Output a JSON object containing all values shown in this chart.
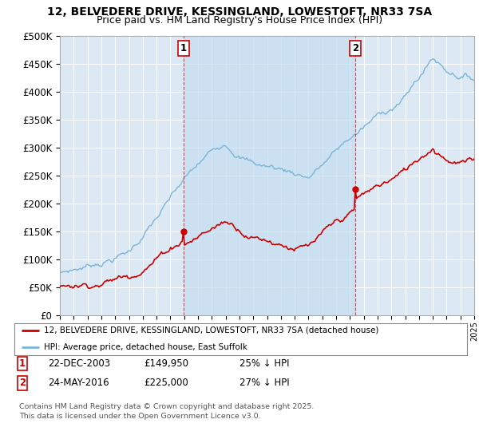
{
  "title_line1": "12, BELVEDERE DRIVE, KESSINGLAND, LOWESTOFT, NR33 7SA",
  "title_line2": "Price paid vs. HM Land Registry's House Price Index (HPI)",
  "ytick_vals": [
    0,
    50000,
    100000,
    150000,
    200000,
    250000,
    300000,
    350000,
    400000,
    450000,
    500000
  ],
  "xlim": [
    1995,
    2025
  ],
  "ylim": [
    0,
    500000
  ],
  "background_color": "#dce9f5",
  "grid_color": "#ffffff",
  "hpi_color": "#7ab5d8",
  "price_color": "#cc0000",
  "shade_color": "#c5ddf0",
  "purchase1_x": 2003.97,
  "purchase1_y": 149950,
  "purchase2_x": 2016.39,
  "purchase2_y": 225000,
  "legend_entry1": "12, BELVEDERE DRIVE, KESSINGLAND, LOWESTOFT, NR33 7SA (detached house)",
  "legend_entry2": "HPI: Average price, detached house, East Suffolk",
  "table_row1": [
    "1",
    "22-DEC-2003",
    "£149,950",
    "25% ↓ HPI"
  ],
  "table_row2": [
    "2",
    "24-MAY-2016",
    "£225,000",
    "27% ↓ HPI"
  ],
  "footnote": "Contains HM Land Registry data © Crown copyright and database right 2025.\nThis data is licensed under the Open Government Licence v3.0.",
  "title_fontsize": 10,
  "subtitle_fontsize": 9
}
